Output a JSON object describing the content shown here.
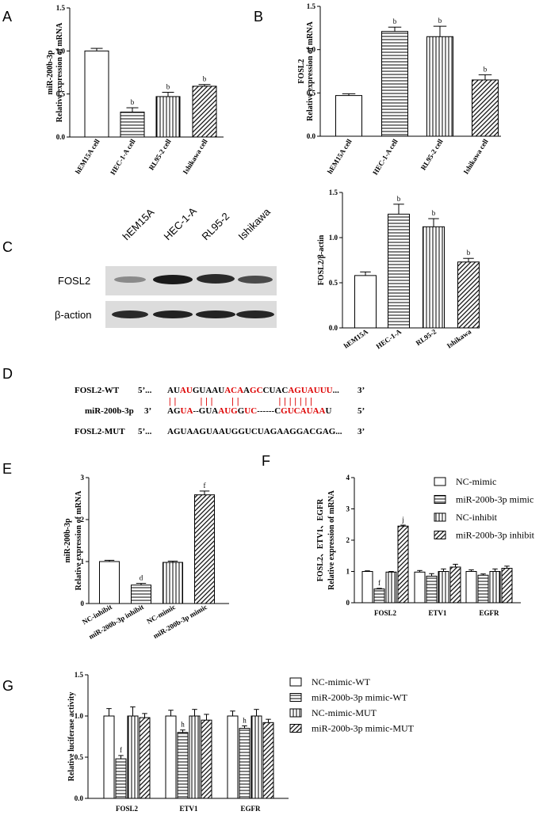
{
  "panels": {
    "A": "A",
    "B": "B",
    "C": "C",
    "D": "D",
    "E": "E",
    "F": "F",
    "G": "G"
  },
  "chart_data": [
    {
      "id": "A",
      "type": "bar",
      "categories": [
        "hEM15A cell",
        "HEC-1-A cell",
        "RL95-2 cell",
        "Ishikawa cell"
      ],
      "values": [
        1.0,
        0.29,
        0.47,
        0.59
      ],
      "errors": [
        0.03,
        0.05,
        0.05,
        0.02
      ],
      "letters": [
        "",
        "b",
        "b",
        "b"
      ],
      "patterns": [
        "open",
        "hstripe",
        "vstripe",
        "diag"
      ],
      "ylabel_lines": [
        "miR-200b-3p",
        "Relative expression of mRNA"
      ],
      "yticks": [
        "0.0",
        "0.5",
        "1.0",
        "1.5"
      ],
      "ylim": [
        0,
        1.5
      ]
    },
    {
      "id": "B",
      "type": "bar",
      "categories": [
        "hEM15A cell",
        "HEC-1-A cell",
        "RL95-2 cell",
        "Ishikawa cell"
      ],
      "values": [
        0.47,
        1.21,
        1.15,
        0.65
      ],
      "errors": [
        0.02,
        0.05,
        0.12,
        0.06
      ],
      "letters": [
        "",
        "b",
        "b",
        "b"
      ],
      "patterns": [
        "open",
        "hstripe",
        "vstripe",
        "diag"
      ],
      "ylabel_lines": [
        "FOSL2",
        "Relative expression of mRNA"
      ],
      "yticks": [
        "0.0",
        "0.5",
        "1.0",
        "1.5"
      ],
      "ylim": [
        0,
        1.5
      ]
    },
    {
      "id": "C",
      "type": "bar",
      "categories": [
        "hEM15A",
        "HEC-1-A",
        "RL95-2",
        "Ishikawa"
      ],
      "values": [
        0.58,
        1.26,
        1.12,
        0.73
      ],
      "errors": [
        0.04,
        0.11,
        0.09,
        0.04
      ],
      "letters": [
        "",
        "b",
        "b",
        "b"
      ],
      "patterns": [
        "open",
        "hstripe",
        "vstripe",
        "diag"
      ],
      "ylabel_lines": [
        "FOSL2/β-actin"
      ],
      "yticks": [
        "0.0",
        "0.5",
        "1.0",
        "1.5"
      ],
      "ylim": [
        0,
        1.5
      ]
    },
    {
      "id": "E",
      "type": "bar",
      "categories": [
        "NC-inhibit",
        "miR-200b-3p inhibit",
        "NC-mimic",
        "miR-200b-3p mimic"
      ],
      "values": [
        1.0,
        0.44,
        0.98,
        2.59
      ],
      "errors": [
        0.03,
        0.04,
        0.03,
        0.09
      ],
      "letters": [
        "",
        "d",
        "",
        "f"
      ],
      "patterns": [
        "open",
        "hstripe",
        "vstripe",
        "diag"
      ],
      "ylabel_lines": [
        "miR-200b-3p",
        "Relative expression of mRNA"
      ],
      "yticks": [
        "0",
        "1",
        "2",
        "3"
      ],
      "ylim": [
        0,
        3
      ]
    },
    {
      "id": "F",
      "type": "bar",
      "groups": [
        "FOSL2",
        "ETV1",
        "EGFR"
      ],
      "series": [
        {
          "name": "NC-mimic",
          "pattern": "open",
          "values": [
            1.0,
            0.98,
            1.0
          ],
          "errors": [
            0.02,
            0.05,
            0.05
          ]
        },
        {
          "name": "miR-200b-3p mimic",
          "pattern": "hstripe",
          "values": [
            0.44,
            0.85,
            0.88
          ],
          "errors": [
            0.02,
            0.08,
            0.04
          ]
        },
        {
          "name": "NC-inhibit",
          "pattern": "vstripe",
          "values": [
            0.98,
            1.0,
            1.0
          ],
          "errors": [
            0.02,
            0.08,
            0.08
          ]
        },
        {
          "name": "miR-200b-3p inhibit",
          "pattern": "diag",
          "values": [
            2.45,
            1.14,
            1.1
          ],
          "errors": [
            0.03,
            0.09,
            0.07
          ]
        }
      ],
      "letters": [
        [
          "",
          "f",
          "",
          "j"
        ],
        [
          "",
          "",
          "",
          ""
        ],
        [
          "",
          "",
          "",
          ""
        ]
      ],
      "ylabel_lines": [
        "FOSL2、ETV1、EGFR",
        "Relative expression of mRNA"
      ],
      "yticks": [
        "0",
        "1",
        "2",
        "3",
        "4"
      ],
      "ylim": [
        0,
        4
      ]
    },
    {
      "id": "G",
      "type": "bar",
      "groups": [
        "FOSL2",
        "ETV1",
        "EGFR"
      ],
      "series": [
        {
          "name": "NC-mimic-WT",
          "pattern": "open",
          "values": [
            1.0,
            1.0,
            1.0
          ],
          "errors": [
            0.09,
            0.07,
            0.06
          ]
        },
        {
          "name": "miR-200b-3p mimic-WT",
          "pattern": "hstripe",
          "values": [
            0.48,
            0.8,
            0.85
          ],
          "errors": [
            0.04,
            0.03,
            0.03
          ]
        },
        {
          "name": "NC-mimic-MUT",
          "pattern": "vstripe",
          "values": [
            1.0,
            1.0,
            1.0
          ],
          "errors": [
            0.11,
            0.08,
            0.08
          ]
        },
        {
          "name": "miR-200b-3p mimic-MUT",
          "pattern": "diag",
          "values": [
            0.98,
            0.95,
            0.92
          ],
          "errors": [
            0.05,
            0.07,
            0.04
          ]
        }
      ],
      "letters": [
        [
          "",
          "f",
          "",
          ""
        ],
        [
          "",
          "h",
          "",
          ""
        ],
        [
          "",
          "h",
          "",
          ""
        ]
      ],
      "ylabel_lines": [
        "Relative luciferase activity"
      ],
      "yticks": [
        "0.0",
        "0.5",
        "1.0",
        "1.5"
      ],
      "ylim": [
        0,
        1.5
      ]
    }
  ],
  "blot": {
    "lanes": [
      "hEM15A",
      "HEC-1-A",
      "RL95-2",
      "Ishikawa"
    ],
    "rows": [
      "FOSL2",
      "β-action"
    ]
  },
  "sequence": {
    "rows": [
      {
        "label": "FOSL2-WT",
        "pre": "5’...",
        "post": "3’",
        "seq": "AUAUGUAAUACAAGCCUACAGUAUUU...",
        "red": [
          2,
          3,
          9,
          10,
          11,
          13,
          14,
          19,
          20,
          21,
          22,
          23,
          24,
          25
        ]
      },
      {
        "label": "miR-200b-3p",
        "pre": "3’",
        "post": "5’",
        "seq": "AGUA--GUAAUGGUC------CGUCAUAAU",
        "red": [
          2,
          3,
          9,
          10,
          11,
          13,
          14,
          22,
          23,
          24,
          25,
          26,
          27,
          28
        ]
      },
      {
        "label": "FOSL2-MUT",
        "pre": "5’...",
        "post": "3’",
        "seq": "AGUAAGUAAUGGUCUAGAAGGACGAG...",
        "red": []
      }
    ],
    "bond_line": "||    |||   ||       |||||||"
  }
}
